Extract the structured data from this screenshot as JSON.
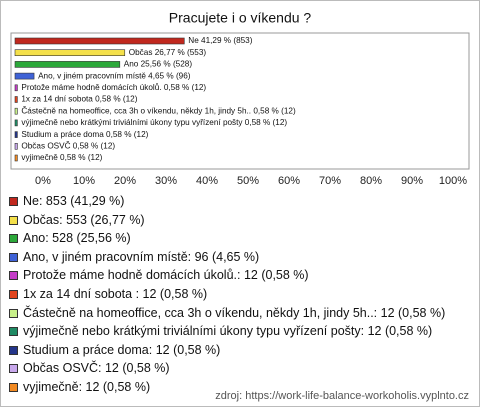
{
  "chart_data": {
    "type": "hbar",
    "title": "Pracujete i o víkendu ?",
    "categories": [
      "Ne",
      "Občas",
      "Ano",
      "Ano, v jiném pracovním místě",
      "Protože máme hodně domácích úkolů.",
      "1x za 14 dní sobota",
      "Částečně na homeoffice, cca 3h o víkendu, někdy 1h, jindy 5h..",
      "výjimečně nebo krátkými triviálními úkony typu vyřízení pošty",
      "Studium a práce doma",
      "Občas OSVČ",
      "vyjimečně"
    ],
    "values": [
      41.29,
      26.77,
      25.56,
      4.65,
      0.58,
      0.58,
      0.58,
      0.58,
      0.58,
      0.58,
      0.58
    ],
    "value_labels": [
      "Ne 41,29 % (853)",
      "Občas 26,77 % (553)",
      "Ano 25,56 % (528)",
      "Ano, v jiném pracovním místě 4,65 % (96)",
      "Protože máme hodně domácích úkolů. 0,58 % (12)",
      "1x za 14 dní sobota  0,58 % (12)",
      "Částečně na homeoffice, cca 3h o víkendu, někdy 1h, jindy 5h.. 0,58 % (12)",
      "výjimečně nebo krátkými triviálními úkony typu vyřízení pošty 0,58 % (12)",
      "Studium a práce doma 0,58 % (12)",
      "Občas OSVČ 0,58 % (12)",
      "vyjimečně 0,58 % (12)"
    ],
    "legend_labels": [
      "Ne: 853 (41,29 %)",
      "Občas: 553 (26,77 %)",
      "Ano: 528 (25,56 %)",
      "Ano, v jiném pracovním místě: 96 (4,65 %)",
      "Protože máme hodně domácích úkolů.: 12 (0,58 %)",
      "1x za 14 dní sobota : 12 (0,58 %)",
      "Částečně na homeoffice, cca 3h o víkendu, někdy 1h, jindy 5h..: 12 (0,58 %)",
      "výjimečně nebo krátkými triviálními úkony typu vyřízení pošty: 12 (0,58 %)",
      "Studium a práce doma: 12 (0,58 %)",
      "Občas OSVČ: 12 (0,58 %)",
      "vyjimečně: 12 (0,58 %)"
    ],
    "colors": [
      "#c0281e",
      "#f4e04a",
      "#2ca83a",
      "#3f62d6",
      "#c43cc8",
      "#e2451e",
      "#c8f08a",
      "#1f8a64",
      "#24358a",
      "#c8a8ec",
      "#f28a22"
    ],
    "xlim": [
      0,
      100
    ],
    "xticks": [
      {
        "value": 0,
        "label": "0%"
      },
      {
        "value": 10,
        "label": "10%"
      },
      {
        "value": 20,
        "label": "20%"
      },
      {
        "value": 30,
        "label": "30%"
      },
      {
        "value": 40,
        "label": "40%"
      },
      {
        "value": 50,
        "label": "50%"
      },
      {
        "value": 60,
        "label": "60%"
      },
      {
        "value": 70,
        "label": "70%"
      },
      {
        "value": 80,
        "label": "80%"
      },
      {
        "value": 90,
        "label": "90%"
      },
      {
        "value": 100,
        "label": "100%"
      }
    ],
    "source": "zdroj: https://work-life-balance-workoholis.vyplnto.cz"
  }
}
